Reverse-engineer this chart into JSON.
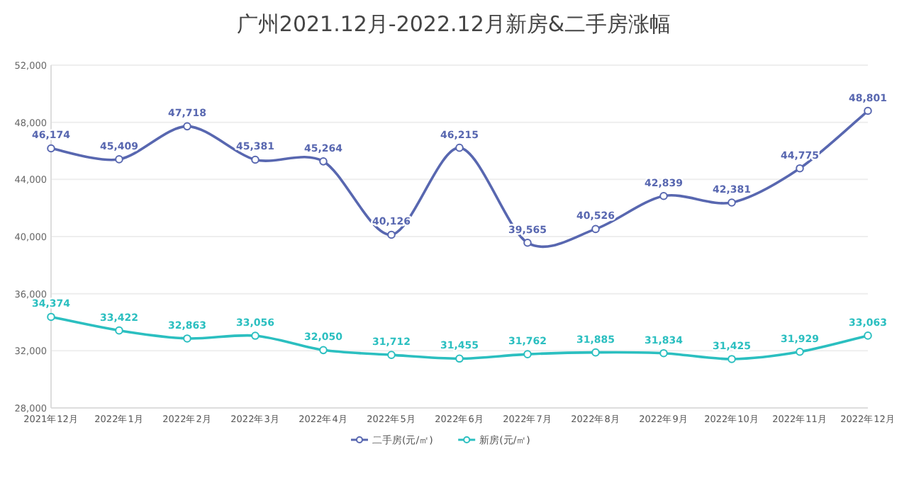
{
  "chart_data": {
    "type": "line",
    "title": "广州2021.12月-2022.12月新房&二手房涨幅",
    "categories": [
      "2021年12月",
      "2022年1月",
      "2022年2月",
      "2022年3月",
      "2022年4月",
      "2022年5月",
      "2022年6月",
      "2022年7月",
      "2022年8月",
      "2022年9月",
      "2022年10月",
      "2022年11月",
      "2022年12月"
    ],
    "series": [
      {
        "name": "二手房(元/㎡)",
        "color": "#5867b0",
        "values": [
          46174,
          45409,
          47718,
          45381,
          45264,
          40126,
          46215,
          39565,
          40526,
          42839,
          42381,
          44775,
          48801
        ],
        "value_labels": [
          "46,174",
          "45,409",
          "47,718",
          "45,381",
          "45,264",
          "40,126",
          "46,215",
          "39,565",
          "40,526",
          "42,839",
          "42,381",
          "44,775",
          "48,801"
        ]
      },
      {
        "name": "新房(元/㎡)",
        "color": "#2bbfc0",
        "values": [
          34374,
          33422,
          32863,
          33056,
          32050,
          31712,
          31455,
          31762,
          31885,
          31834,
          31425,
          31929,
          33063
        ],
        "value_labels": [
          "34,374",
          "33,422",
          "32,863",
          "33,056",
          "32,050",
          "31,712",
          "31,455",
          "31,762",
          "31,885",
          "31,834",
          "31,425",
          "31,929",
          "33,063"
        ]
      }
    ],
    "ylim": [
      28000,
      52000
    ],
    "yticks": [
      {
        "value": 28000,
        "label": "28,000"
      },
      {
        "value": 32000,
        "label": "32,000"
      },
      {
        "value": 36000,
        "label": "36,000"
      },
      {
        "value": 40000,
        "label": "40,000"
      },
      {
        "value": 44000,
        "label": "44,000"
      },
      {
        "value": 48000,
        "label": "48,000"
      },
      {
        "value": 52000,
        "label": "52,000"
      }
    ],
    "grid": "y",
    "legend": "bottom",
    "marker": "circle",
    "line_style": "solid"
  }
}
